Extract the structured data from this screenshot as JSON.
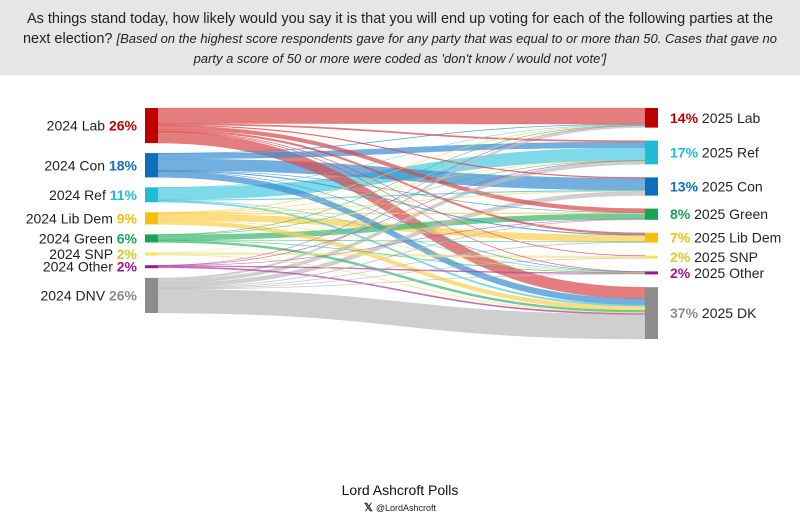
{
  "header": {
    "question": "As things stand today, how likely would you say it is that you will end up voting for each of the following parties at the next election?",
    "note": "[Based on the highest score respondents gave for any party that was equal to or more than 50. Cases that gave no party a score of 50 or more were coded as 'don't know / would not vote']"
  },
  "footer": {
    "brand": "Lord Ashcroft Polls",
    "handle": "@LordAshcroft",
    "icon": "x-logo-icon"
  },
  "chart_data": {
    "type": "sankey",
    "sources": [
      {
        "id": "lab24",
        "label": "2024 Lab",
        "pct": "26%",
        "value": 26,
        "color": "#c00000",
        "flow_color": "#d94b4b"
      },
      {
        "id": "con24",
        "label": "2024 Con",
        "pct": "18%",
        "value": 18,
        "color": "#0e6ebc",
        "flow_color": "#3b8fd1"
      },
      {
        "id": "ref24",
        "label": "2024 Ref",
        "pct": "11%",
        "value": 11,
        "color": "#1fbdd4",
        "flow_color": "#4ccbe0"
      },
      {
        "id": "ld24",
        "label": "2024 Lib Dem",
        "pct": "9%",
        "value": 9,
        "color": "#f7bd0f",
        "flow_color": "#fbd150"
      },
      {
        "id": "grn24",
        "label": "2024 Green",
        "pct": "6%",
        "value": 6,
        "color": "#1aa354",
        "flow_color": "#3db86f"
      },
      {
        "id": "snp24",
        "label": "2024 SNP",
        "pct": "2%",
        "value": 2,
        "color": "#f3e65a",
        "flow_color": "#f0e68a"
      },
      {
        "id": "oth24",
        "label": "2024 Other",
        "pct": "2%",
        "value": 2,
        "color": "#a3158e",
        "flow_color": "#b84aa6"
      },
      {
        "id": "dnv24",
        "label": "2024 DNV",
        "pct": "26%",
        "value": 26,
        "color": "#8c8c8c",
        "flow_color": "#bdbdbd"
      }
    ],
    "targets": [
      {
        "id": "lab25",
        "label": "2025 Lab",
        "pct": "14%",
        "value": 14,
        "color": "#c00000"
      },
      {
        "id": "ref25",
        "label": "2025 Ref",
        "pct": "17%",
        "value": 17,
        "color": "#1fbdd4"
      },
      {
        "id": "con25",
        "label": "2025 Con",
        "pct": "13%",
        "value": 13,
        "color": "#0e6ebc"
      },
      {
        "id": "grn25",
        "label": "2025 Green",
        "pct": "8%",
        "value": 8,
        "color": "#1aa354"
      },
      {
        "id": "ld25",
        "label": "2025 Lib Dem",
        "pct": "7%",
        "value": 7,
        "color": "#f7bd0f"
      },
      {
        "id": "snp25",
        "label": "2025 SNP",
        "pct": "2%",
        "value": 2,
        "color": "#f3e65a"
      },
      {
        "id": "oth25",
        "label": "2025 Other",
        "pct": "2%",
        "value": 2,
        "color": "#a3158e"
      },
      {
        "id": "dk25",
        "label": "2025 DK",
        "pct": "37%",
        "value": 37,
        "color": "#8c8c8c"
      }
    ],
    "flows": [
      {
        "from": "lab24",
        "to": "lab25",
        "value": 11.5
      },
      {
        "from": "lab24",
        "to": "ref25",
        "value": 1.0
      },
      {
        "from": "lab24",
        "to": "con25",
        "value": 0.6
      },
      {
        "from": "lab24",
        "to": "grn25",
        "value": 2.8
      },
      {
        "from": "lab24",
        "to": "ld25",
        "value": 1.3
      },
      {
        "from": "lab24",
        "to": "snp25",
        "value": 0.3
      },
      {
        "from": "lab24",
        "to": "oth25",
        "value": 0.3
      },
      {
        "from": "lab24",
        "to": "dk25",
        "value": 8.2
      },
      {
        "from": "con24",
        "to": "lab25",
        "value": 0.3
      },
      {
        "from": "con24",
        "to": "ref25",
        "value": 4.0
      },
      {
        "from": "con24",
        "to": "con25",
        "value": 8.5
      },
      {
        "from": "con24",
        "to": "grn25",
        "value": 0.2
      },
      {
        "from": "con24",
        "to": "ld25",
        "value": 0.5
      },
      {
        "from": "con24",
        "to": "oth25",
        "value": 0.2
      },
      {
        "from": "con24",
        "to": "dk25",
        "value": 4.3
      },
      {
        "from": "ref24",
        "to": "lab25",
        "value": 0.1
      },
      {
        "from": "ref24",
        "to": "ref25",
        "value": 9.0
      },
      {
        "from": "ref24",
        "to": "con25",
        "value": 0.6
      },
      {
        "from": "ref24",
        "to": "oth25",
        "value": 0.2
      },
      {
        "from": "ref24",
        "to": "dk25",
        "value": 1.1
      },
      {
        "from": "ld24",
        "to": "lab25",
        "value": 0.3
      },
      {
        "from": "ld24",
        "to": "ref25",
        "value": 0.2
      },
      {
        "from": "ld24",
        "to": "con25",
        "value": 0.3
      },
      {
        "from": "ld24",
        "to": "grn25",
        "value": 0.6
      },
      {
        "from": "ld24",
        "to": "ld25",
        "value": 4.6
      },
      {
        "from": "ld24",
        "to": "oth25",
        "value": 0.1
      },
      {
        "from": "ld24",
        "to": "dk25",
        "value": 2.9
      },
      {
        "from": "grn24",
        "to": "lab25",
        "value": 0.2
      },
      {
        "from": "grn24",
        "to": "ref25",
        "value": 0.1
      },
      {
        "from": "grn24",
        "to": "grn25",
        "value": 3.8
      },
      {
        "from": "grn24",
        "to": "ld25",
        "value": 0.2
      },
      {
        "from": "grn24",
        "to": "oth25",
        "value": 0.2
      },
      {
        "from": "grn24",
        "to": "dk25",
        "value": 1.5
      },
      {
        "from": "snp24",
        "to": "lab25",
        "value": 0.1
      },
      {
        "from": "snp24",
        "to": "snp25",
        "value": 1.4
      },
      {
        "from": "snp24",
        "to": "dk25",
        "value": 0.5
      },
      {
        "from": "oth24",
        "to": "lab25",
        "value": 0.1
      },
      {
        "from": "oth24",
        "to": "ref25",
        "value": 0.2
      },
      {
        "from": "oth24",
        "to": "grn25",
        "value": 0.1
      },
      {
        "from": "oth24",
        "to": "oth25",
        "value": 0.7
      },
      {
        "from": "oth24",
        "to": "dk25",
        "value": 0.9
      },
      {
        "from": "dnv24",
        "to": "lab25",
        "value": 1.4
      },
      {
        "from": "dnv24",
        "to": "ref25",
        "value": 2.5
      },
      {
        "from": "dnv24",
        "to": "con25",
        "value": 3.0
      },
      {
        "from": "dnv24",
        "to": "grn25",
        "value": 0.5
      },
      {
        "from": "dnv24",
        "to": "ld25",
        "value": 0.4
      },
      {
        "from": "dnv24",
        "to": "snp25",
        "value": 0.3
      },
      {
        "from": "dnv24",
        "to": "oth25",
        "value": 0.3
      },
      {
        "from": "dnv24",
        "to": "dk25",
        "value": 17.6
      }
    ]
  }
}
